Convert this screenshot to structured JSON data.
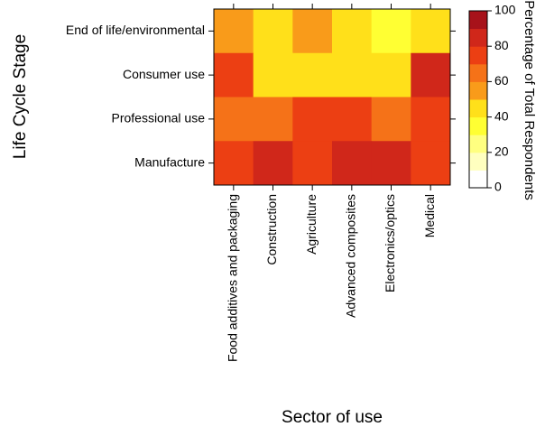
{
  "chart_data": {
    "type": "heatmap",
    "xlabel": "Sector of use",
    "ylabel": "Life Cycle Stage",
    "x_categories": [
      "Food additives and packaging",
      "Construction",
      "Agriculture",
      "Advanced composites",
      "Electronics/optics",
      "Medical"
    ],
    "y_categories": [
      "End of life/environmental",
      "Consumer use",
      "Professional use",
      "Manufacture"
    ],
    "values": [
      [
        55,
        42,
        55,
        42,
        35,
        42
      ],
      [
        75,
        42,
        42,
        42,
        42,
        85
      ],
      [
        60,
        60,
        70,
        70,
        60,
        75
      ],
      [
        70,
        85,
        75,
        85,
        85,
        70
      ]
    ],
    "colorbar": {
      "title": "Percentage of Total Respondents",
      "range": [
        0,
        100
      ],
      "ticks": [
        0,
        20,
        40,
        60,
        80,
        100
      ],
      "bins": [
        {
          "from": 0,
          "to": 10,
          "color": "#ffffff"
        },
        {
          "from": 10,
          "to": 20,
          "color": "#ffffbf"
        },
        {
          "from": 20,
          "to": 30,
          "color": "#ffff80"
        },
        {
          "from": 30,
          "to": 40,
          "color": "#ffff33"
        },
        {
          "from": 40,
          "to": 50,
          "color": "#ffe01a"
        },
        {
          "from": 50,
          "to": 60,
          "color": "#f99b1a"
        },
        {
          "from": 60,
          "to": 70,
          "color": "#f57218"
        },
        {
          "from": 70,
          "to": 80,
          "color": "#ec3f13"
        },
        {
          "from": 80,
          "to": 90,
          "color": "#d0271a"
        },
        {
          "from": 90,
          "to": 100,
          "color": "#a7121a"
        }
      ]
    }
  }
}
